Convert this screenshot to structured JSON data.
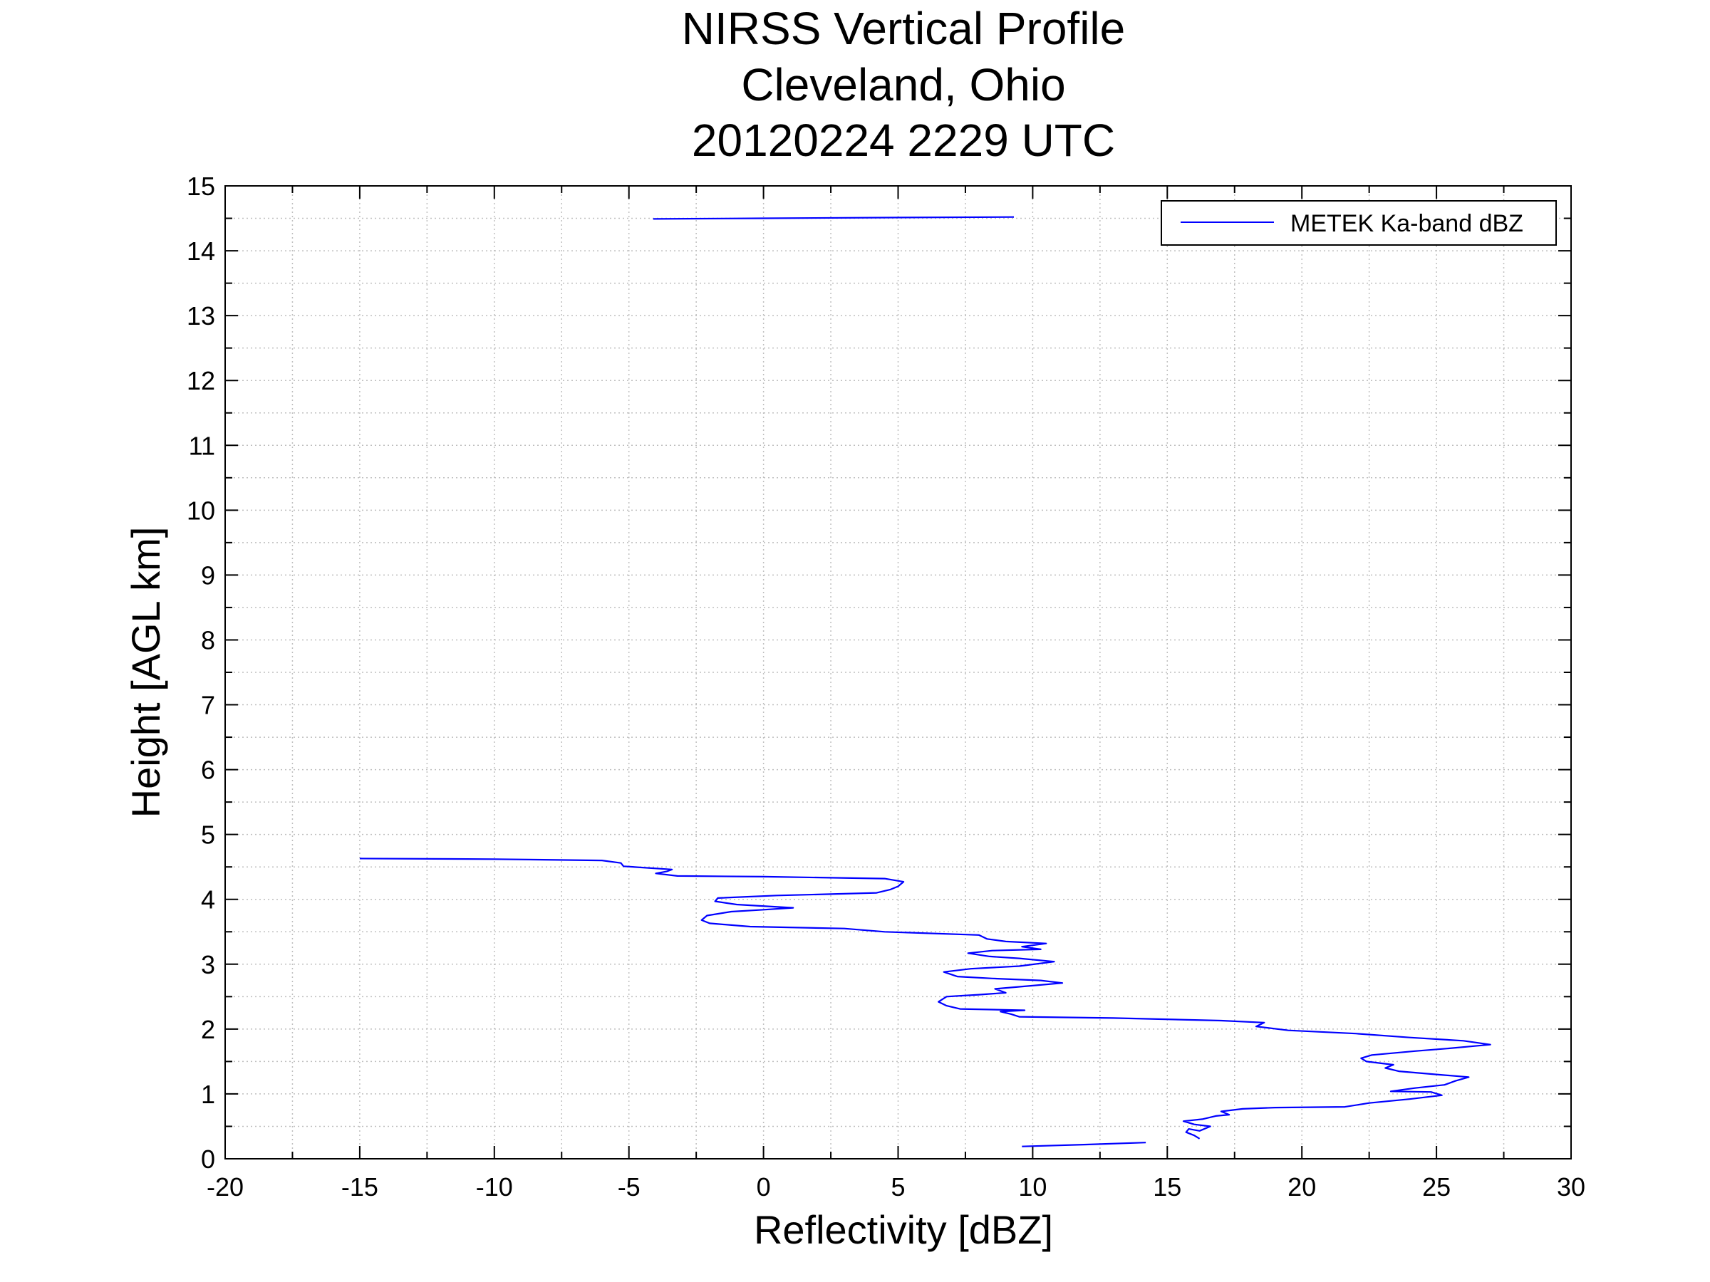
{
  "chart_data": {
    "type": "line",
    "title": [
      "NIRSS Vertical Profile",
      "Cleveland, Ohio",
      "20120224 2229 UTC"
    ],
    "xlabel": "Reflectivity [dBZ]",
    "ylabel": "Height [AGL km]",
    "xlim": [
      -20,
      30
    ],
    "ylim": [
      0,
      15
    ],
    "x_ticks": [
      "-20",
      "-15",
      "-10",
      "-5",
      "0",
      "5",
      "10",
      "15",
      "20",
      "25",
      "30"
    ],
    "y_ticks": [
      "0",
      "1",
      "2",
      "3",
      "4",
      "5",
      "6",
      "7",
      "8",
      "9",
      "10",
      "11",
      "12",
      "13",
      "14",
      "15"
    ],
    "grid": "on (dotted, major and minor)",
    "legend_position": "top-right",
    "colors": {
      "series": "#0000ff",
      "axes": "#000000",
      "grid": "#bfbfbf"
    },
    "series": [
      {
        "name": "METEK Ka-band dBZ",
        "segments": [
          [
            [
              -4.1,
              14.49
            ],
            [
              0.0,
              14.5
            ],
            [
              4.0,
              14.51
            ],
            [
              9.3,
              14.52
            ]
          ],
          [
            [
              9.6,
              0.19
            ],
            [
              12.0,
              0.22
            ],
            [
              14.2,
              0.25
            ]
          ],
          [
            [
              16.2,
              0.31
            ],
            [
              16.0,
              0.36
            ],
            [
              15.7,
              0.41
            ],
            [
              15.8,
              0.46
            ],
            [
              16.2,
              0.43
            ],
            [
              16.6,
              0.5
            ],
            [
              16.0,
              0.53
            ],
            [
              15.6,
              0.58
            ],
            [
              16.3,
              0.61
            ],
            [
              16.8,
              0.66
            ],
            [
              17.3,
              0.68
            ],
            [
              17.0,
              0.73
            ],
            [
              17.8,
              0.77
            ],
            [
              19.0,
              0.79
            ],
            [
              21.6,
              0.8
            ],
            [
              22.5,
              0.86
            ],
            [
              24.0,
              0.92
            ],
            [
              25.2,
              0.98
            ],
            [
              24.8,
              1.03
            ],
            [
              23.3,
              1.04
            ],
            [
              24.2,
              1.09
            ],
            [
              25.3,
              1.14
            ],
            [
              25.7,
              1.2
            ],
            [
              26.2,
              1.26
            ],
            [
              25.0,
              1.3
            ],
            [
              23.6,
              1.35
            ],
            [
              23.1,
              1.4
            ],
            [
              23.4,
              1.45
            ],
            [
              22.4,
              1.5
            ],
            [
              22.2,
              1.55
            ],
            [
              22.6,
              1.6
            ],
            [
              24.2,
              1.66
            ],
            [
              25.4,
              1.7
            ],
            [
              27.0,
              1.76
            ],
            [
              26.0,
              1.82
            ],
            [
              24.0,
              1.87
            ],
            [
              22.0,
              1.93
            ],
            [
              19.5,
              1.98
            ],
            [
              18.3,
              2.04
            ],
            [
              18.6,
              2.1
            ],
            [
              17.0,
              2.13
            ],
            [
              13.0,
              2.17
            ],
            [
              9.5,
              2.19
            ],
            [
              9.2,
              2.23
            ],
            [
              8.8,
              2.27
            ],
            [
              9.7,
              2.29
            ],
            [
              7.3,
              2.31
            ],
            [
              6.8,
              2.36
            ],
            [
              6.5,
              2.42
            ],
            [
              6.8,
              2.5
            ],
            [
              8.0,
              2.53
            ],
            [
              9.0,
              2.56
            ],
            [
              8.6,
              2.62
            ],
            [
              10.0,
              2.67
            ],
            [
              11.1,
              2.71
            ],
            [
              10.3,
              2.75
            ],
            [
              8.5,
              2.78
            ],
            [
              7.2,
              2.81
            ],
            [
              6.7,
              2.88
            ],
            [
              7.7,
              2.93
            ],
            [
              9.5,
              2.97
            ],
            [
              10.8,
              3.04
            ],
            [
              9.5,
              3.09
            ],
            [
              8.4,
              3.12
            ],
            [
              7.6,
              3.17
            ],
            [
              8.5,
              3.21
            ],
            [
              10.3,
              3.23
            ],
            [
              9.6,
              3.27
            ],
            [
              10.5,
              3.32
            ],
            [
              9.0,
              3.35
            ],
            [
              8.3,
              3.39
            ],
            [
              8.0,
              3.45
            ],
            [
              4.5,
              3.5
            ],
            [
              3.0,
              3.55
            ],
            [
              -0.5,
              3.58
            ],
            [
              -2.0,
              3.63
            ],
            [
              -2.3,
              3.68
            ],
            [
              -2.1,
              3.75
            ],
            [
              -1.2,
              3.81
            ],
            [
              0.0,
              3.84
            ],
            [
              1.1,
              3.87
            ],
            [
              -1.0,
              3.92
            ],
            [
              -1.8,
              3.97
            ],
            [
              -1.7,
              4.02
            ],
            [
              0.5,
              4.06
            ],
            [
              2.5,
              4.08
            ],
            [
              4.2,
              4.1
            ],
            [
              4.7,
              4.15
            ],
            [
              5.0,
              4.2
            ],
            [
              5.2,
              4.27
            ],
            [
              4.5,
              4.32
            ],
            [
              0.0,
              4.35
            ],
            [
              -3.2,
              4.36
            ],
            [
              -4.0,
              4.4
            ],
            [
              -3.6,
              4.43
            ],
            [
              -3.4,
              4.46
            ],
            [
              -5.2,
              4.51
            ],
            [
              -5.3,
              4.56
            ],
            [
              -6.0,
              4.6
            ],
            [
              -10.0,
              4.62
            ],
            [
              -15.0,
              4.63
            ]
          ]
        ]
      }
    ]
  }
}
